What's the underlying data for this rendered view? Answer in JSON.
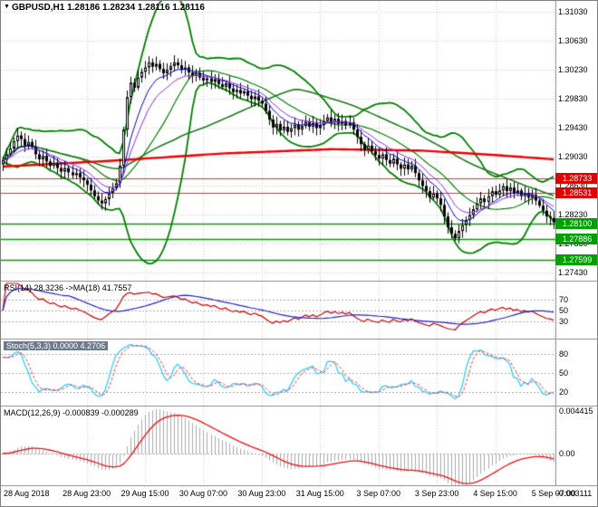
{
  "main": {
    "collapse_arrow": "▼",
    "symbol": "GBPUSD,H1",
    "ohlc": "1.28186 1.28234 1.28116 1.28116",
    "axis_ticks": [
      "1.31030",
      "1.30630",
      "1.30230",
      "1.29830",
      "1.29430",
      "1.29030",
      "1.28630",
      "1.28230",
      "1.27830",
      "1.27430"
    ],
    "red_levels": [
      {
        "price": 1.28733,
        "label": "1.28733"
      },
      {
        "price": 1.28531,
        "label": "1.28531"
      }
    ],
    "green_levels": [
      {
        "price": 1.281,
        "label": "1.28100"
      },
      {
        "price": 1.27886,
        "label": "1.27886"
      },
      {
        "price": 1.27599,
        "label": "1.27599"
      }
    ]
  },
  "rsi": {
    "label": "RSI(14) 28.3236  ->MA(18) 41.7557",
    "levels": [
      70,
      50,
      30
    ],
    "period": 14,
    "ma_period": 18
  },
  "stoch": {
    "label": "Stoch(5,3,3) 0.0000 4.2706",
    "levels": [
      80,
      50,
      20
    ],
    "k": 5,
    "d": 3,
    "slowing": 3
  },
  "macd": {
    "label": "MACD(12,26,9) -0.000839 -0.000289",
    "fast": 12,
    "slow": 26,
    "signal": 9,
    "axis_labels": {
      "top": "0.004415",
      "zero": "0.00",
      "bottom": "-0.003111"
    }
  },
  "colors": {
    "up_body": "#ffffff",
    "down_body": "#000000",
    "candle_line": "#000000",
    "bollinger": "#008000",
    "sma_mid": "#008000",
    "sma_slow": "#1d7a1d",
    "ema_fast": "#0000cc",
    "ema_med": "#8a2be2",
    "red_ma": "#ee0000",
    "level_red": "#ff2020",
    "level_green": "#00a000",
    "tag_red": "#e00000",
    "tag_green": "#00a000",
    "grid": "#c8c8c8",
    "level_dash": "#a8a8a8",
    "rsi_main": "#cc0000",
    "rsi_ma": "#2222cc",
    "stoch_main": "#33ccff",
    "stoch_signal": "#ff3333",
    "macd_hist": "#a8a8a8",
    "macd_signal": "#ee1111"
  },
  "chart_data": {
    "type": "candlestick",
    "symbol": "GBPUSD",
    "timeframe": "H1",
    "ylim": [
      1.273,
      1.3118
    ],
    "closes": [
      1.2898,
      1.2906,
      1.2914,
      1.2924,
      1.2932,
      1.2927,
      1.2918,
      1.2923,
      1.2916,
      1.2906,
      1.2899,
      1.2904,
      1.2896,
      1.289,
      1.2894,
      1.2887,
      1.2882,
      1.2887,
      1.2881,
      1.2877,
      1.288,
      1.2874,
      1.287,
      1.2864,
      1.2856,
      1.2848,
      1.2842,
      1.2838,
      1.2844,
      1.2852,
      1.2859,
      1.2866,
      1.289,
      1.294,
      1.2985,
      1.3005,
      1.2998,
      1.3012,
      1.302,
      1.3026,
      1.3033,
      1.3027,
      1.3031,
      1.3024,
      1.3018,
      1.3023,
      1.3028,
      1.3033,
      1.3029,
      1.3023,
      1.3026,
      1.3019,
      1.3014,
      1.3018,
      1.3012,
      1.3008,
      1.3011,
      1.3006,
      1.301,
      1.3003,
      1.2999,
      1.3004,
      1.2997,
      1.2992,
      1.2995,
      1.299,
      1.2993,
      1.2987,
      1.2982,
      1.2986,
      1.298,
      1.2976,
      1.2966,
      1.2954,
      1.2943,
      1.2948,
      1.2939,
      1.2944,
      1.2937,
      1.2942,
      1.2947,
      1.294,
      1.2945,
      1.2951,
      1.2944,
      1.2949,
      1.2942,
      1.2946,
      1.2952,
      1.2957,
      1.295,
      1.2955,
      1.2948,
      1.2952,
      1.2946,
      1.295,
      1.294,
      1.293,
      1.292,
      1.2912,
      1.2918,
      1.291,
      1.2905,
      1.29,
      1.2906,
      1.2898,
      1.2893,
      1.29,
      1.2892,
      1.2886,
      1.2892,
      1.2885,
      1.289,
      1.288,
      1.287,
      1.2862,
      1.2855,
      1.2846,
      1.2852,
      1.2845,
      1.2836,
      1.282,
      1.2805,
      1.2796,
      1.279,
      1.28,
      1.2808,
      1.2815,
      1.2822,
      1.283,
      1.2838,
      1.2845,
      1.284,
      1.2848,
      1.2855,
      1.285,
      1.2856,
      1.2862,
      1.2855,
      1.286,
      1.2852,
      1.2856,
      1.2848,
      1.2852,
      1.2846,
      1.285,
      1.2842,
      1.2835,
      1.2828,
      1.282,
      1.2818,
      1.28116
    ],
    "bollinger": {
      "period": 20,
      "deviation": 2.2
    },
    "sma_mid_period": 20,
    "sma_slow_period": 48,
    "ema_fast_period": 8,
    "ema_med_period": 13,
    "red_ma_keyframes": [
      [
        0,
        1.2889
      ],
      [
        30,
        1.2897
      ],
      [
        60,
        1.2907
      ],
      [
        90,
        1.2913
      ],
      [
        115,
        1.2911
      ],
      [
        135,
        1.2905
      ],
      [
        151,
        1.2899
      ]
    ],
    "timeline": [
      {
        "idx": 0,
        "text": "28 Aug 2018"
      },
      {
        "idx": 23,
        "text": "28 Aug 23:00"
      },
      {
        "idx": 39,
        "text": "29 Aug 15:00"
      },
      {
        "idx": 55,
        "text": "30 Aug 07:00"
      },
      {
        "idx": 71,
        "text": "30 Aug 23:00"
      },
      {
        "idx": 87,
        "text": "31 Aug 15:00"
      },
      {
        "idx": 103,
        "text": "3 Sep 07:00"
      },
      {
        "idx": 119,
        "text": "3 Sep 23:00"
      },
      {
        "idx": 135,
        "text": "4 Sep 15:00"
      },
      {
        "idx": 151,
        "text": "5 Sep 07:00"
      }
    ]
  }
}
